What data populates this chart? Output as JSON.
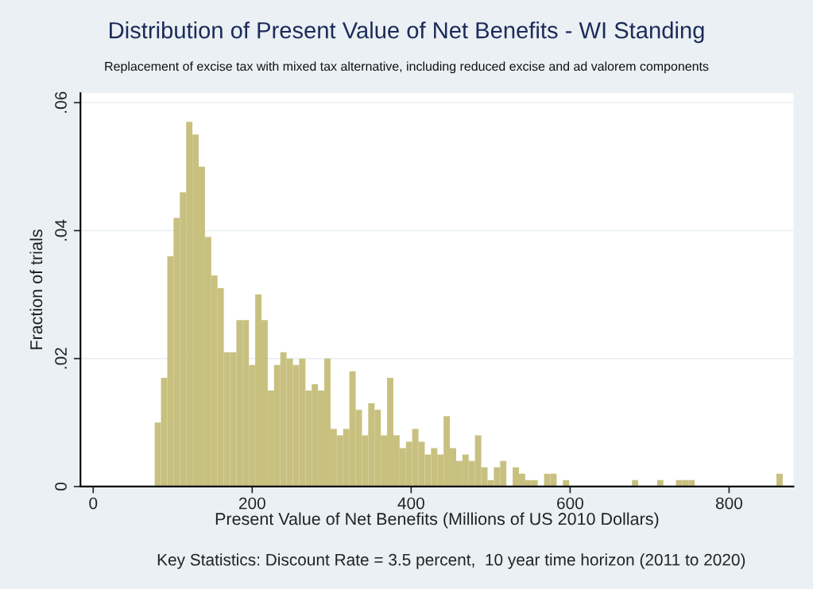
{
  "chart_data": {
    "type": "histogram",
    "title": "Distribution of Present Value of Net Benefits - WI Standing",
    "subtitle": "Replacement of excise tax with mixed tax alternative, including reduced excise and ad valorem components",
    "xlabel": "Present Value of Net Benefits (Millions of US 2010 Dollars)",
    "ylabel": "Fraction of trials",
    "annotations": [
      "Key Statistics: Discount Rate = 3.5 percent,  10 year time horizon (2011 to 2020)"
    ],
    "bins": [
      77.4,
      85.3,
      93.2,
      101.1,
      109.0,
      116.9,
      124.8,
      132.7,
      140.6,
      148.5,
      156.4,
      164.3,
      172.2,
      180.1,
      188.0,
      195.9,
      203.8,
      211.7,
      219.6,
      227.5,
      235.4,
      243.3,
      251.2,
      259.1,
      267.0,
      274.9,
      282.8,
      290.7,
      298.6,
      306.5,
      314.4,
      322.3,
      330.2,
      338.1,
      346.0,
      353.9,
      361.8,
      369.7,
      377.6,
      385.5,
      393.4,
      401.3,
      409.2,
      417.1,
      425.0,
      432.9,
      440.8,
      448.7,
      456.6,
      464.5,
      472.4,
      480.3,
      488.2,
      496.1,
      504.0,
      511.9,
      519.8,
      527.7,
      535.6,
      543.5,
      551.4,
      559.3,
      567.2,
      575.1,
      583.0,
      590.9,
      598.8,
      606.7,
      614.6,
      622.5,
      630.4,
      638.3,
      646.2,
      654.1,
      662.0,
      669.9,
      677.8,
      685.7,
      693.6,
      701.5,
      709.4,
      717.3,
      725.2,
      733.1,
      741.0,
      748.9,
      756.8,
      764.7,
      772.6,
      780.5,
      788.4,
      796.3,
      804.2,
      812.1,
      820.0,
      827.9,
      835.8,
      843.7,
      851.6,
      859.5,
      867.4
    ],
    "values": [
      0.01,
      0.017,
      0.036,
      0.042,
      0.046,
      0.057,
      0.055,
      0.05,
      0.039,
      0.033,
      0.031,
      0.021,
      0.021,
      0.026,
      0.026,
      0.019,
      0.03,
      0.026,
      0.015,
      0.019,
      0.021,
      0.02,
      0.019,
      0.02,
      0.015,
      0.016,
      0.015,
      0.02,
      0.009,
      0.008,
      0.009,
      0.018,
      0.012,
      0.008,
      0.013,
      0.012,
      0.008,
      0.017,
      0.008,
      0.006,
      0.007,
      0.009,
      0.007,
      0.005,
      0.006,
      0.005,
      0.011,
      0.006,
      0.004,
      0.005,
      0.004,
      0.008,
      0.003,
      0.001,
      0.003,
      0.004,
      0,
      0.003,
      0.002,
      0.001,
      0.001,
      0,
      0.002,
      0.002,
      0,
      0.001,
      0,
      0,
      0,
      0,
      0,
      0,
      0,
      0,
      0,
      0,
      0.001,
      0,
      0,
      0,
      0.001,
      0,
      0,
      0.001,
      0.001,
      0.001,
      0,
      0,
      0,
      0,
      0,
      0,
      0,
      0,
      0,
      0,
      0,
      0,
      0,
      0.002
    ],
    "color": "#c8c07f",
    "xlim": [
      -16,
      881
    ],
    "xticks": [
      0,
      200,
      400,
      600,
      800
    ],
    "ylim": [
      0,
      0.0615
    ],
    "yticks": [
      {
        "value": 0,
        "label": "0"
      },
      {
        "value": 0.02,
        "label": ".02"
      },
      {
        "value": 0.04,
        "label": ".04"
      },
      {
        "value": 0.06,
        "label": ".06"
      }
    ],
    "grid": "y"
  }
}
